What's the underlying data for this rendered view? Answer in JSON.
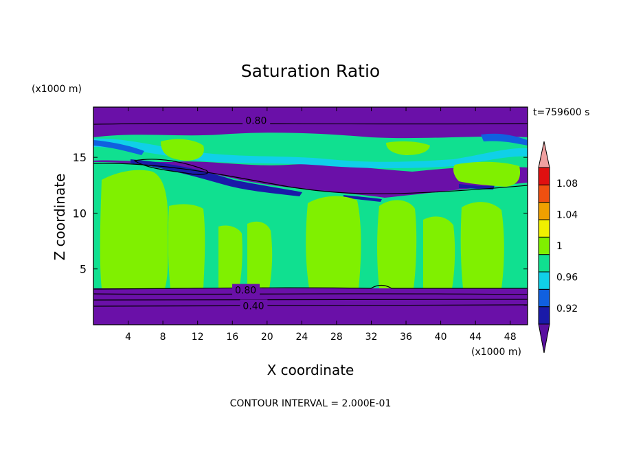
{
  "chart_data": {
    "type": "heatmap",
    "title": "Saturation Ratio",
    "xlabel": "X coordinate",
    "ylabel": "Z coordinate",
    "x_unit": "(x1000 m)",
    "y_unit": "(x1000 m)",
    "time_label": "t=759600 s",
    "footer": "CONTOUR INTERVAL = 2.000E-01",
    "xlim": [
      0,
      50
    ],
    "ylim": [
      0,
      19.5
    ],
    "x_ticks": [
      4,
      8,
      12,
      16,
      20,
      24,
      28,
      32,
      36,
      40,
      44,
      48
    ],
    "y_ticks": [
      5,
      10,
      15
    ],
    "x_tick_labels": [
      "4",
      "8",
      "12",
      "16",
      "20",
      "24",
      "28",
      "32",
      "36",
      "40",
      "44",
      "48"
    ],
    "y_tick_labels": [
      "5",
      "10",
      "15"
    ],
    "contour_labels": [
      {
        "text": "0.80",
        "x": 17.5,
        "y": 18.3
      },
      {
        "text": "0.80",
        "x": 16.3,
        "y": 3.1
      },
      {
        "text": "0.40",
        "x": 17.2,
        "y": 1.7
      }
    ],
    "colorbar": {
      "labels": [
        "1.08",
        "1.04",
        "1",
        "0.96",
        "0.92"
      ],
      "levels": [
        1.08,
        1.04,
        1.0,
        0.96,
        0.92
      ],
      "colors": [
        "#5a10a0",
        "#1a1aa8",
        "#1060e0",
        "#10d0e8",
        "#10e090",
        "#80f000",
        "#f0f000",
        "#f0a000",
        "#f05010",
        "#e01010",
        "#f0a0a0"
      ]
    },
    "field": {
      "background_color": "#6a10a8",
      "mid_color": "#10e090",
      "cloud_color": "#80f000",
      "cyan_color": "#10d0e8",
      "blue_color": "#1060e0",
      "navy_color": "#1a1aa8"
    }
  }
}
